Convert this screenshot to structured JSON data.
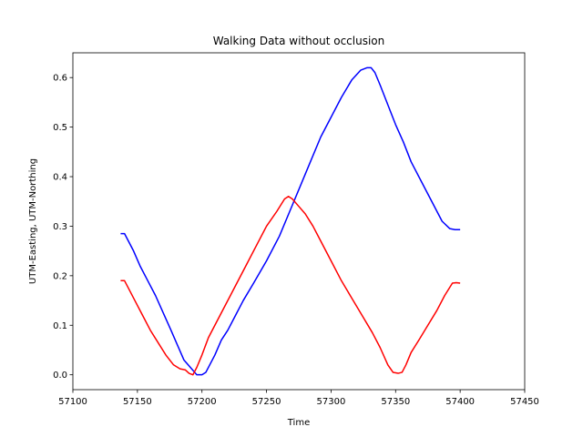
{
  "chart_data": {
    "type": "line",
    "title": "Walking Data without occlusion",
    "xlabel": "Time",
    "ylabel": "UTM-Easting, UTM-Northing",
    "xlim": [
      57100,
      57450
    ],
    "ylim": [
      -0.03,
      0.65
    ],
    "xticks": [
      57100,
      57150,
      57200,
      57250,
      57300,
      57350,
      57400,
      57450
    ],
    "yticks": [
      0.0,
      0.1,
      0.2,
      0.3,
      0.4,
      0.5,
      0.6
    ],
    "grid": false,
    "colors": {
      "blue": "#0000ff",
      "red": "#ff0000"
    },
    "series": [
      {
        "color": "#0000ff",
        "x": [
          57137,
          57140,
          57143,
          57147,
          57152,
          57158,
          57164,
          57170,
          57176,
          57181,
          57186,
          57191,
          57196,
          57200,
          57203,
          57206,
          57210,
          57215,
          57220,
          57226,
          57232,
          57240,
          57250,
          57260,
          57268,
          57276,
          57284,
          57292,
          57300,
          57308,
          57316,
          57323,
          57328,
          57331,
          57334,
          57338,
          57344,
          57350,
          57356,
          57362,
          57370,
          57378,
          57386,
          57392,
          57396,
          57400
        ],
        "y": [
          0.285,
          0.285,
          0.27,
          0.25,
          0.22,
          0.19,
          0.16,
          0.125,
          0.09,
          0.06,
          0.03,
          0.015,
          0.0,
          0.0,
          0.005,
          0.02,
          0.04,
          0.07,
          0.09,
          0.12,
          0.15,
          0.185,
          0.23,
          0.28,
          0.33,
          0.38,
          0.43,
          0.48,
          0.52,
          0.56,
          0.595,
          0.615,
          0.62,
          0.62,
          0.61,
          0.585,
          0.545,
          0.505,
          0.47,
          0.43,
          0.39,
          0.35,
          0.31,
          0.295,
          0.293,
          0.293
        ]
      },
      {
        "color": "#ff0000",
        "x": [
          57137,
          57140,
          57143,
          57148,
          57154,
          57160,
          57166,
          57172,
          57178,
          57183,
          57187,
          57190,
          57193,
          57196,
          57200,
          57205,
          57210,
          57218,
          57226,
          57234,
          57242,
          57250,
          57258,
          57264,
          57267,
          57270,
          57275,
          57280,
          57286,
          57292,
          57300,
          57308,
          57316,
          57324,
          57332,
          57338,
          57344,
          57348,
          57352,
          57355,
          57358,
          57362,
          57368,
          57375,
          57382,
          57388,
          57394,
          57397,
          57400
        ],
        "y": [
          0.19,
          0.19,
          0.175,
          0.15,
          0.12,
          0.09,
          0.065,
          0.04,
          0.02,
          0.012,
          0.01,
          0.003,
          0.0,
          0.015,
          0.04,
          0.075,
          0.1,
          0.14,
          0.18,
          0.22,
          0.26,
          0.3,
          0.33,
          0.355,
          0.36,
          0.355,
          0.34,
          0.325,
          0.3,
          0.27,
          0.23,
          0.19,
          0.155,
          0.12,
          0.085,
          0.055,
          0.02,
          0.005,
          0.003,
          0.005,
          0.02,
          0.045,
          0.07,
          0.1,
          0.13,
          0.16,
          0.185,
          0.186,
          0.185
        ]
      }
    ]
  }
}
